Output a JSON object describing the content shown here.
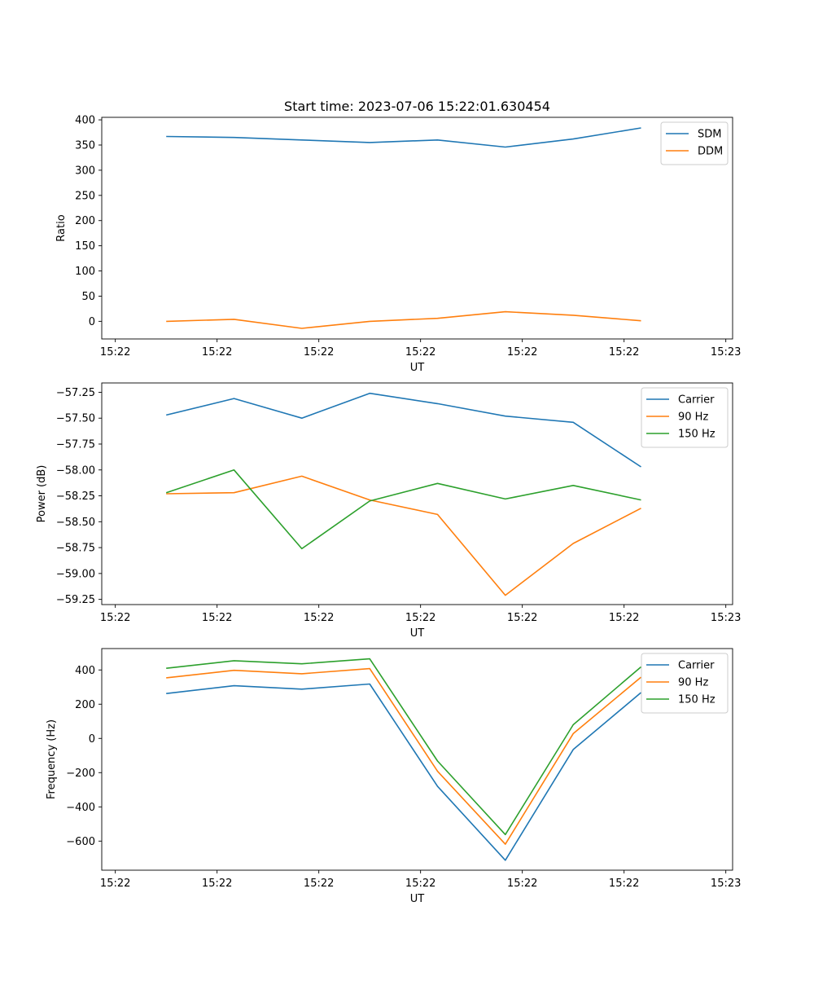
{
  "chart_data": [
    {
      "type": "line",
      "title": "Start time: 2023-07-06 15:22:01.630454",
      "xlabel": "UT",
      "ylabel": "Ratio",
      "xlim": [
        -0.2,
        9.1
      ],
      "ylim": [
        -35,
        405
      ],
      "x_ticks": [
        0,
        1.5,
        3,
        4.5,
        6,
        7.5,
        9
      ],
      "x_tick_labels": [
        "15:22",
        "15:22",
        "15:22",
        "15:22",
        "15:22",
        "15:22",
        "15:23"
      ],
      "y_ticks": [
        0,
        50,
        100,
        150,
        200,
        250,
        300,
        350,
        400
      ],
      "y_tick_labels": [
        "0",
        "50",
        "100",
        "150",
        "200",
        "250",
        "300",
        "350",
        "400"
      ],
      "x": [
        0.75,
        1.75,
        2.75,
        3.75,
        4.75,
        5.75,
        6.75,
        7.75
      ],
      "series": [
        {
          "name": "SDM",
          "color": "#1f77b4",
          "values": [
            367,
            365,
            360,
            355,
            360,
            346,
            362,
            384
          ]
        },
        {
          "name": "DDM",
          "color": "#ff7f0e",
          "values": [
            0,
            4,
            -14,
            0,
            6,
            19,
            12,
            1
          ]
        }
      ],
      "legend_position": "top-right"
    },
    {
      "type": "line",
      "title": "",
      "xlabel": "UT",
      "ylabel": "Power (dB)",
      "xlim": [
        -0.2,
        9.1
      ],
      "ylim": [
        -59.3,
        -57.16
      ],
      "x_ticks": [
        0,
        1.5,
        3,
        4.5,
        6,
        7.5,
        9
      ],
      "x_tick_labels": [
        "15:22",
        "15:22",
        "15:22",
        "15:22",
        "15:22",
        "15:22",
        "15:23"
      ],
      "y_ticks": [
        -59.25,
        -59.0,
        -58.75,
        -58.5,
        -58.25,
        -58.0,
        -57.75,
        -57.5,
        -57.25
      ],
      "y_tick_labels": [
        "−59.25",
        "−59.00",
        "−58.75",
        "−58.50",
        "−58.25",
        "−58.00",
        "−57.75",
        "−57.50",
        "−57.25"
      ],
      "x": [
        0.75,
        1.75,
        2.75,
        3.75,
        4.75,
        5.75,
        6.75,
        7.75
      ],
      "series": [
        {
          "name": "Carrier",
          "color": "#1f77b4",
          "values": [
            -57.47,
            -57.31,
            -57.5,
            -57.26,
            -57.36,
            -57.48,
            -57.54,
            -57.97
          ]
        },
        {
          "name": "90 Hz",
          "color": "#ff7f0e",
          "values": [
            -58.23,
            -58.22,
            -58.06,
            -58.29,
            -58.43,
            -59.21,
            -58.71,
            -58.37
          ]
        },
        {
          "name": "150 Hz",
          "color": "#2ca02c",
          "values": [
            -58.22,
            -58.0,
            -58.76,
            -58.3,
            -58.13,
            -58.28,
            -58.15,
            -58.29
          ]
        }
      ],
      "legend_position": "top-right"
    },
    {
      "type": "line",
      "title": "",
      "xlabel": "UT",
      "ylabel": "Frequency (Hz)",
      "xlim": [
        -0.2,
        9.1
      ],
      "ylim": [
        -770,
        525
      ],
      "x_ticks": [
        0,
        1.5,
        3,
        4.5,
        6,
        7.5,
        9
      ],
      "x_tick_labels": [
        "15:22",
        "15:22",
        "15:22",
        "15:22",
        "15:22",
        "15:22",
        "15:23"
      ],
      "y_ticks": [
        -600,
        -400,
        -200,
        0,
        200,
        400
      ],
      "y_tick_labels": [
        "−600",
        "−400",
        "−200",
        "0",
        "200",
        "400"
      ],
      "x": [
        0.75,
        1.75,
        2.75,
        3.75,
        4.75,
        5.75,
        6.75,
        7.75
      ],
      "series": [
        {
          "name": "Carrier",
          "color": "#1f77b4",
          "values": [
            262,
            308,
            288,
            318,
            -280,
            -712,
            -65,
            268
          ]
        },
        {
          "name": "90 Hz",
          "color": "#ff7f0e",
          "values": [
            354,
            398,
            378,
            408,
            -192,
            -618,
            28,
            358
          ]
        },
        {
          "name": "150 Hz",
          "color": "#2ca02c",
          "values": [
            410,
            454,
            436,
            465,
            -132,
            -562,
            80,
            418
          ]
        }
      ],
      "legend_position": "top-right"
    }
  ]
}
